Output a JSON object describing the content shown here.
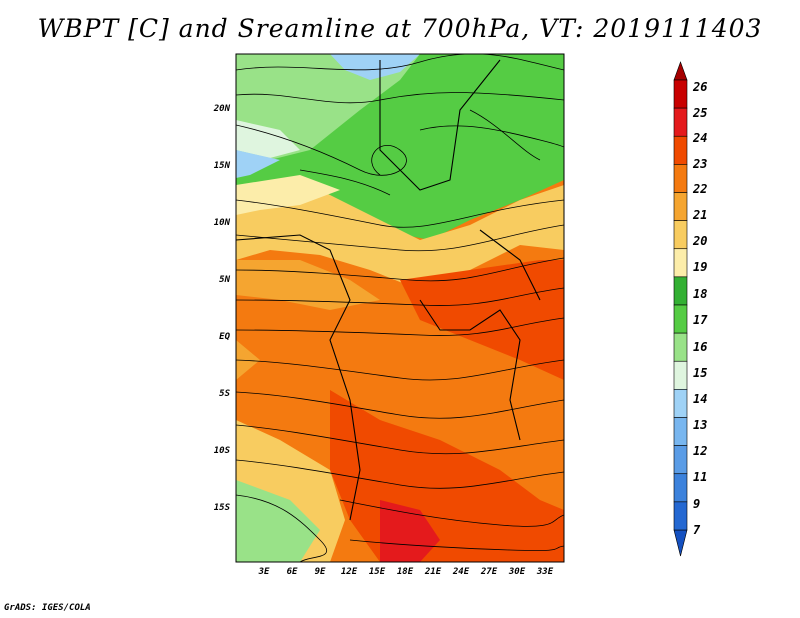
{
  "title": "WBPT [C] and Sreamline at 700hPa, VT: 2019111403",
  "credit": "GrADS: IGES/COLA",
  "map": {
    "lat_labels": [
      "20N",
      "15N",
      "10N",
      "5N",
      "EQ",
      "5S",
      "10S",
      "15S"
    ],
    "lon_labels": [
      "3E",
      "6E",
      "9E",
      "12E",
      "15E",
      "18E",
      "21E",
      "24E",
      "27E",
      "30E",
      "33E"
    ]
  },
  "colorbar": {
    "labels": [
      "26",
      "25",
      "24",
      "23",
      "22",
      "21",
      "20",
      "19",
      "18",
      "17",
      "16",
      "15",
      "14",
      "13",
      "12",
      "11",
      "9",
      "7"
    ],
    "colors": [
      "#a50000",
      "#c80000",
      "#e41a1c",
      "#f04a00",
      "#f47a10",
      "#f5a530",
      "#f8cc60",
      "#fcedaa",
      "#33b033",
      "#55cc44",
      "#99e288",
      "#dff5df",
      "#9fd2f6",
      "#78b6ef",
      "#5a9ce6",
      "#3c82dc",
      "#2468d2",
      "#1450c0"
    ]
  }
}
